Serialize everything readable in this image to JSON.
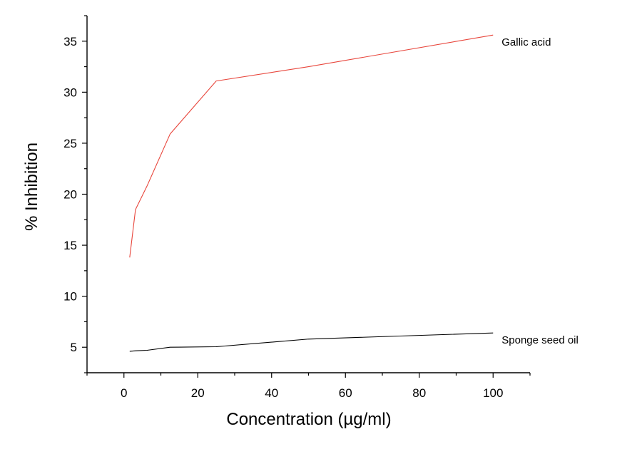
{
  "chart_data": {
    "type": "line",
    "title": "",
    "xlabel": "Concentration (µg/ml)",
    "ylabel": "% Inhibition",
    "xlim": [
      -10,
      110
    ],
    "ylim": [
      2.5,
      37.5
    ],
    "xticks": [
      0,
      20,
      40,
      60,
      80,
      100
    ],
    "yticks": [
      5,
      10,
      15,
      20,
      25,
      30,
      35
    ],
    "grid": false,
    "legend": "inline labels at line ends",
    "series": [
      {
        "name": "Gallic acid",
        "color": "#e8463c",
        "points": [
          {
            "x": 1.56,
            "y": 13.8
          },
          {
            "x": 3.13,
            "y": 18.5
          },
          {
            "x": 6.25,
            "y": 20.8
          },
          {
            "x": 12.5,
            "y": 25.9
          },
          {
            "x": 25,
            "y": 31.1
          },
          {
            "x": 50,
            "y": 32.5
          },
          {
            "x": 100,
            "y": 35.6
          }
        ]
      },
      {
        "name": "Sponge seed oil",
        "color": "#000000",
        "points": [
          {
            "x": 1.56,
            "y": 4.6
          },
          {
            "x": 3.13,
            "y": 4.65
          },
          {
            "x": 6.25,
            "y": 4.7
          },
          {
            "x": 12.5,
            "y": 5.0
          },
          {
            "x": 25,
            "y": 5.05
          },
          {
            "x": 50,
            "y": 5.8
          },
          {
            "x": 100,
            "y": 6.4
          }
        ]
      }
    ]
  }
}
